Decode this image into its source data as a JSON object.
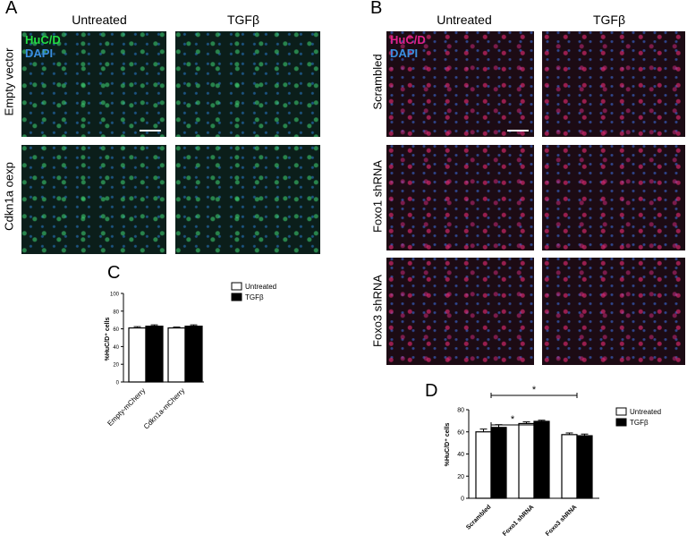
{
  "panelA": {
    "letter": "A",
    "columns": [
      "Untreated",
      "TGFβ"
    ],
    "rows": [
      "Empty vector",
      "Cdkn1a oexp"
    ],
    "stain1": "HuC/D",
    "stain2": "DAPI",
    "colors": {
      "stain1": "#22dd44",
      "stain2": "#3a8fe0"
    }
  },
  "panelB": {
    "letter": "B",
    "columns": [
      "Untreated",
      "TGFβ"
    ],
    "rows": [
      "Scrambled",
      "Foxo1 shRNA",
      "Foxo3 shRNA"
    ],
    "stain1": "HuC/D",
    "stain2": "DAPI",
    "colors": {
      "stain1": "#e0208a",
      "stain2": "#3a8fe0"
    }
  },
  "panelC": {
    "letter": "C",
    "chart_data": {
      "type": "bar",
      "categories": [
        "Empty-mCherry",
        "Cdkn1a-mCherry"
      ],
      "series": [
        {
          "name": "Untreated",
          "values": [
            61,
            61
          ],
          "errors": [
            1.5,
            1
          ],
          "color": "#ffffff"
        },
        {
          "name": "TGFβ",
          "values": [
            63,
            63
          ],
          "errors": [
            1.5,
            1.5
          ],
          "color": "#000000"
        }
      ],
      "ylabel": "%HuC/D⁺ cells",
      "ylim": [
        0,
        100
      ],
      "yticks": [
        "0",
        "20",
        "40",
        "60",
        "80",
        "100"
      ],
      "legend": "top-right"
    }
  },
  "panelD": {
    "letter": "D",
    "chart_data": {
      "type": "bar",
      "categories": [
        "Scrambled",
        "Foxo1 shRNA",
        "Foxo3 shRNA"
      ],
      "series": [
        {
          "name": "Untreated",
          "values": [
            60,
            67.5,
            57.5
          ],
          "errors": [
            2.5,
            1.5,
            1.5
          ],
          "color": "#ffffff"
        },
        {
          "name": "TGFβ",
          "values": [
            64,
            69.5,
            56.5
          ],
          "errors": [
            2.5,
            1,
            1.5
          ],
          "color": "#000000"
        }
      ],
      "ylabel": "%HuC/D⁺ cells",
      "ylim": [
        0,
        80
      ],
      "yticks": [
        "0",
        "20",
        "40",
        "60",
        "80"
      ],
      "legend": "top-right",
      "significance": [
        {
          "from": "Scrambled",
          "to": "Foxo1 shRNA",
          "label": "*"
        },
        {
          "from": "Scrambled",
          "to": "Foxo3 shRNA",
          "label": "*"
        }
      ]
    }
  }
}
